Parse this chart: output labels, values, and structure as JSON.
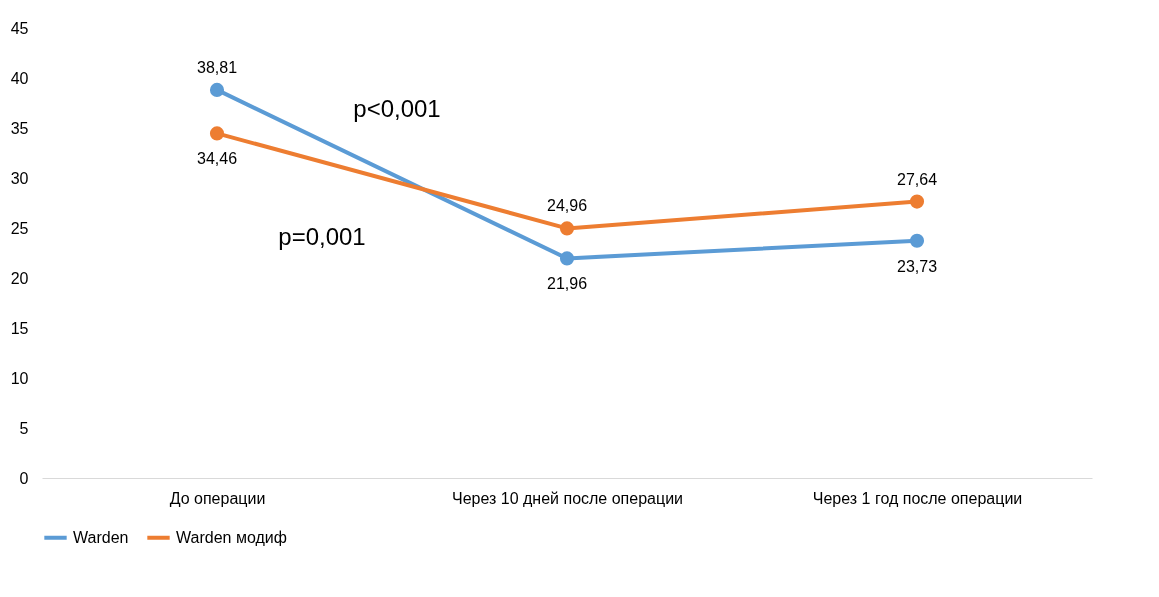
{
  "chart_data": {
    "type": "line",
    "categories": [
      "До операции",
      "Через 10 дней после операции",
      "Через 1 год после операции"
    ],
    "series": [
      {
        "name": "Warden",
        "color": "#5b9bd5",
        "values": [
          38.81,
          21.96,
          23.73
        ],
        "value_labels": [
          "38,81",
          "21,96",
          "23,73"
        ]
      },
      {
        "name": "Warden модиф",
        "color": "#ed7d31",
        "values": [
          34.46,
          24.96,
          27.64
        ],
        "value_labels": [
          "34,46",
          "24,96",
          "27,64"
        ]
      }
    ],
    "ylim": [
      0,
      45
    ],
    "yticks": [
      0,
      5,
      10,
      15,
      20,
      25,
      30,
      35,
      40,
      45
    ],
    "grid": false,
    "legend": "bottom",
    "marker": "circle",
    "line_style": "solid",
    "annotations": [
      "p<0,001",
      "p=0,001"
    ]
  }
}
